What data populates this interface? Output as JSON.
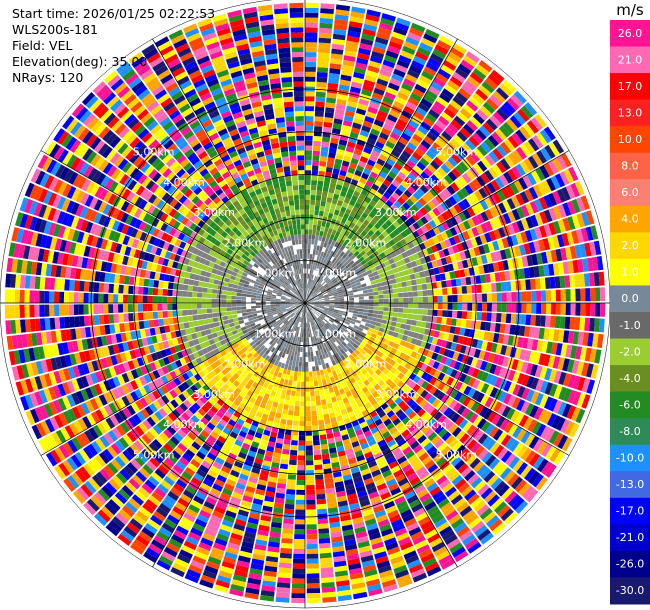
{
  "info": {
    "start_time": "Start time: 2026/01/25 02:22:53",
    "station": "WLS200s-181",
    "field": "Field: VEL",
    "elevation": "Elevation(deg): 35.00",
    "nrays": "NRays: 120"
  },
  "chart_data": {
    "type": "heatmap",
    "projection": "polar-ppi",
    "field": "VEL",
    "units": "m/s",
    "n_rays": 120,
    "max_range_km": 7.0,
    "range_rings_km": [
      1.0,
      2.0,
      3.0,
      4.0,
      5.0
    ],
    "ring_labels": [
      "1.00km",
      "2.00km",
      "3.00km",
      "4.00km",
      "5.00km"
    ],
    "spokes_deg": [
      0,
      30,
      60,
      90,
      120,
      150,
      180,
      210,
      240,
      270,
      300,
      330
    ],
    "colorbar": {
      "label": "m/s",
      "ticks": [
        "26.0",
        "21.0",
        "17.0",
        "13.0",
        "10.0",
        "8.0",
        "6.0",
        "4.0",
        "2.0",
        "1.0",
        "0.0",
        "-1.0",
        "-2.0",
        "-4.0",
        "-6.0",
        "-8.0",
        "-10.0",
        "-13.0",
        "-17.0",
        "-21.0",
        "-26.0",
        "-30.0"
      ],
      "bins": [
        {
          "min": 26,
          "max": 30,
          "color": "#ff1493"
        },
        {
          "min": 21,
          "max": 26,
          "color": "#ff69b4"
        },
        {
          "min": 17,
          "max": 21,
          "color": "#ff0000"
        },
        {
          "min": 13,
          "max": 17,
          "color": "#ff2020"
        },
        {
          "min": 10,
          "max": 13,
          "color": "#ff4500"
        },
        {
          "min": 8,
          "max": 10,
          "color": "#ff6347"
        },
        {
          "min": 6,
          "max": 8,
          "color": "#fa8072"
        },
        {
          "min": 4,
          "max": 6,
          "color": "#ffa500"
        },
        {
          "min": 2,
          "max": 4,
          "color": "#ffd700"
        },
        {
          "min": 1,
          "max": 2,
          "color": "#ffff00"
        },
        {
          "min": 0,
          "max": 1,
          "color": "#778899"
        },
        {
          "min": -1,
          "max": 0,
          "color": "#696969"
        },
        {
          "min": -2,
          "max": -1,
          "color": "#9acd32"
        },
        {
          "min": -4,
          "max": -2,
          "color": "#6b8e23"
        },
        {
          "min": -6,
          "max": -4,
          "color": "#228b22"
        },
        {
          "min": -8,
          "max": -6,
          "color": "#2e8b57"
        },
        {
          "min": -10,
          "max": -8,
          "color": "#1e90ff"
        },
        {
          "min": -13,
          "max": -10,
          "color": "#4169e1"
        },
        {
          "min": -17,
          "max": -13,
          "color": "#0000ff"
        },
        {
          "min": -21,
          "max": -17,
          "color": "#0000cd"
        },
        {
          "min": -26,
          "max": -21,
          "color": "#00008b"
        },
        {
          "min": -30,
          "max": -26,
          "color": "#191970"
        }
      ]
    },
    "valid_range_km": 2.9,
    "pattern_zones": [
      {
        "from_km": 0.0,
        "to_km": 1.5,
        "az_from": 0,
        "az_to": 360,
        "palette": [
          "#696969",
          "#778899",
          "#808080"
        ]
      },
      {
        "from_km": 1.5,
        "to_km": 2.9,
        "az_from": 300,
        "az_to": 60,
        "palette": [
          "#228b22",
          "#6b8e23",
          "#9acd32"
        ]
      },
      {
        "from_km": 1.5,
        "to_km": 2.9,
        "az_from": 240,
        "az_to": 300,
        "palette": [
          "#9acd32",
          "#808080"
        ]
      },
      {
        "from_km": 1.5,
        "to_km": 2.9,
        "az_from": 60,
        "az_to": 110,
        "palette": [
          "#9acd32",
          "#808080"
        ]
      },
      {
        "from_km": 1.5,
        "to_km": 2.9,
        "az_from": 110,
        "az_to": 240,
        "palette": [
          "#ffff00",
          "#ffd700",
          "#ffa500"
        ]
      },
      {
        "from_km": 2.9,
        "to_km": 7.0,
        "az_from": 0,
        "az_to": 360,
        "palette": [
          "#ff1493",
          "#ff69b4",
          "#ff0000",
          "#ff4500",
          "#ffa500",
          "#ffd700",
          "#ffff00",
          "#228b22",
          "#1e90ff",
          "#0000ff",
          "#00008b",
          "#191970"
        ]
      }
    ]
  }
}
